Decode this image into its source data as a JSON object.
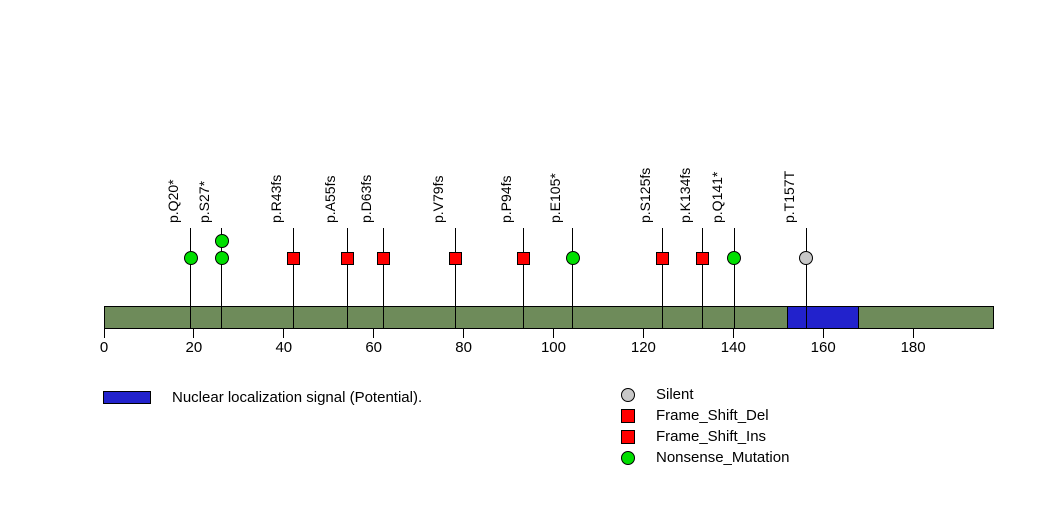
{
  "colors": {
    "background": "#ffffff",
    "protein_bar": "#6E8B5A",
    "domain_blue": "#2222CC",
    "silent_gray": "#C8C8C8",
    "frame_shift_red": "#FF0000",
    "nonsense_green": "#00DF00",
    "stick_black": "#000000"
  },
  "chart_data": {
    "type": "lollipop",
    "title": "",
    "xlabel": "",
    "ylabel": "",
    "protein_length": 198,
    "xlim": [
      0,
      198
    ],
    "grid": false,
    "axis_ticks": [
      0,
      20,
      40,
      60,
      80,
      100,
      120,
      140,
      160,
      180
    ],
    "domains": [
      {
        "name": "Nuclear localization signal (Potential).",
        "start": 153,
        "end": 168,
        "color": "#2222CC"
      }
    ],
    "mutations": [
      {
        "label": "p.Q20*",
        "position": 20,
        "count": 1,
        "type": "Nonsense_Mutation",
        "shape": "circle",
        "color": "#00DF00"
      },
      {
        "label": "p.S27*",
        "position": 27,
        "count": 2,
        "type": "Nonsense_Mutation",
        "shape": "circle",
        "color": "#00DF00"
      },
      {
        "label": "p.R43fs",
        "position": 43,
        "count": 1,
        "type": "Frame_Shift",
        "shape": "square",
        "color": "#FF0000"
      },
      {
        "label": "p.A55fs",
        "position": 55,
        "count": 1,
        "type": "Frame_Shift",
        "shape": "square",
        "color": "#FF0000"
      },
      {
        "label": "p.D63fs",
        "position": 63,
        "count": 1,
        "type": "Frame_Shift",
        "shape": "square",
        "color": "#FF0000"
      },
      {
        "label": "p.V79fs",
        "position": 79,
        "count": 1,
        "type": "Frame_Shift",
        "shape": "square",
        "color": "#FF0000"
      },
      {
        "label": "p.P94fs",
        "position": 94,
        "count": 1,
        "type": "Frame_Shift",
        "shape": "square",
        "color": "#FF0000"
      },
      {
        "label": "p.E105*",
        "position": 105,
        "count": 1,
        "type": "Nonsense_Mutation",
        "shape": "circle",
        "color": "#00DF00"
      },
      {
        "label": "p.S125fs",
        "position": 125,
        "count": 1,
        "type": "Frame_Shift",
        "shape": "square",
        "color": "#FF0000"
      },
      {
        "label": "p.K134fs",
        "position": 134,
        "count": 1,
        "type": "Frame_Shift",
        "shape": "square",
        "color": "#FF0000"
      },
      {
        "label": "p.Q141*",
        "position": 141,
        "count": 1,
        "type": "Nonsense_Mutation",
        "shape": "circle",
        "color": "#00DF00"
      },
      {
        "label": "p.T157T",
        "position": 157,
        "count": 1,
        "type": "Silent",
        "shape": "circle",
        "color": "#C8C8C8"
      }
    ]
  },
  "legend_domain": {
    "label": "Nuclear localization signal (Potential).",
    "color": "#2222CC"
  },
  "legend_mutations": {
    "items": [
      {
        "label": "Silent",
        "shape": "circle",
        "color": "#C8C8C8"
      },
      {
        "label": "Frame_Shift_Del",
        "shape": "square",
        "color": "#FF0000"
      },
      {
        "label": "Frame_Shift_Ins",
        "shape": "square",
        "color": "#FF0000"
      },
      {
        "label": "Nonsense_Mutation",
        "shape": "circle",
        "color": "#00DF00"
      }
    ]
  }
}
